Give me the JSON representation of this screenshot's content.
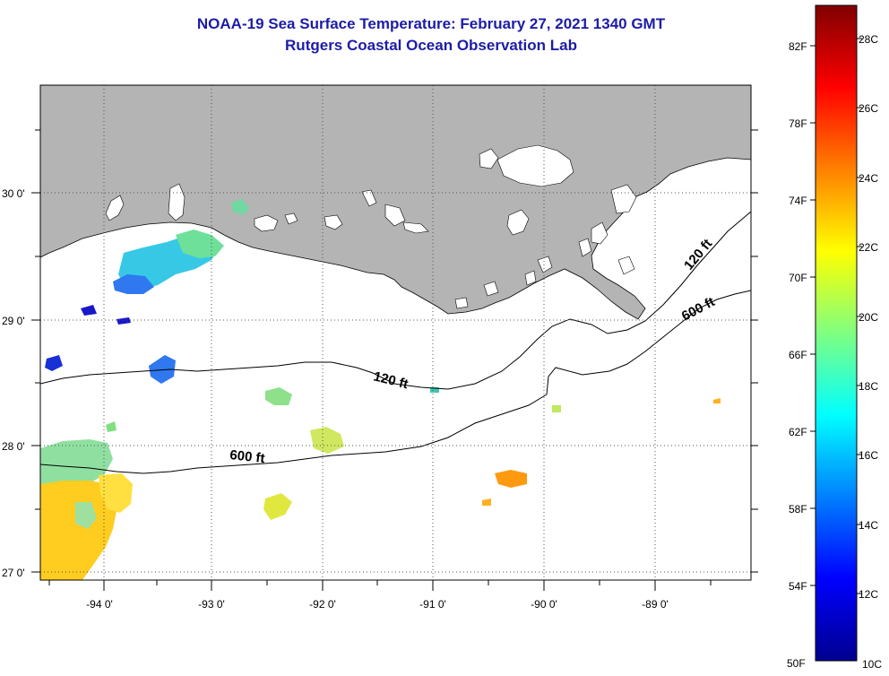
{
  "header": {
    "title": "NOAA-19 Sea Surface Temperature:  February 27, 2021 1340 GMT",
    "subtitle": "Rutgers Coastal Ocean Observation Lab"
  },
  "map": {
    "lon_labels": [
      "-94 0'",
      "-93 0'",
      "-92 0'",
      "-91 0'",
      "-90 0'",
      "-89 0'"
    ],
    "lat_labels": [
      "30 0'",
      "29 0'",
      "28 0'",
      "27 0'"
    ],
    "contours": {
      "shallow_label": "120 ft",
      "deep_label": "600 ft"
    }
  },
  "colorbar": {
    "fahrenheit_labels": [
      "82F",
      "78F",
      "74F",
      "70F",
      "66F",
      "62F",
      "58F",
      "54F",
      "50F"
    ],
    "celsius_labels": [
      "28C",
      "26C",
      "24C",
      "22C",
      "20C",
      "18C",
      "16C",
      "14C",
      "12C",
      "10C"
    ],
    "colors": [
      "#00008f",
      "#0000ff",
      "#0080ff",
      "#00ffff",
      "#80ff80",
      "#ffff00",
      "#ff8000",
      "#ff0000",
      "#800000"
    ]
  }
}
